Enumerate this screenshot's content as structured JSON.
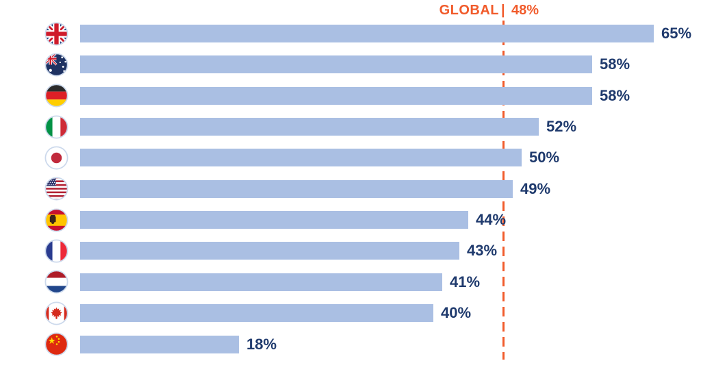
{
  "chart_data": {
    "type": "bar",
    "orientation": "horizontal",
    "title": "",
    "xlabel": "",
    "ylabel": "",
    "unit": "%",
    "xlim": [
      0,
      65
    ],
    "grid": false,
    "categories": [
      "United Kingdom",
      "Australia",
      "Germany",
      "Italy",
      "Japan",
      "United States",
      "Spain",
      "France",
      "Netherlands",
      "Canada",
      "China"
    ],
    "values": [
      65,
      58,
      58,
      52,
      50,
      49,
      44,
      43,
      41,
      40,
      18
    ],
    "value_labels": [
      "65%",
      "58%",
      "58%",
      "52%",
      "50%",
      "49%",
      "44%",
      "43%",
      "41%",
      "40%",
      "18%"
    ],
    "flag_icons": [
      "uk-flag-icon",
      "australia-flag-icon",
      "germany-flag-icon",
      "italy-flag-icon",
      "japan-flag-icon",
      "usa-flag-icon",
      "spain-flag-icon",
      "france-flag-icon",
      "netherlands-flag-icon",
      "canada-flag-icon",
      "china-flag-icon"
    ],
    "reference_line": {
      "label": "GLOBAL",
      "separator": "|",
      "value": 48,
      "value_label": "48%",
      "style": "dashed",
      "position": "vertical"
    },
    "colors": {
      "bar": "#aabfe3",
      "value_label": "#1f3a6d",
      "reference": "#f15b2b",
      "flag_ring": "#ccd9ec",
      "background": "#ffffff"
    },
    "legend": null
  }
}
